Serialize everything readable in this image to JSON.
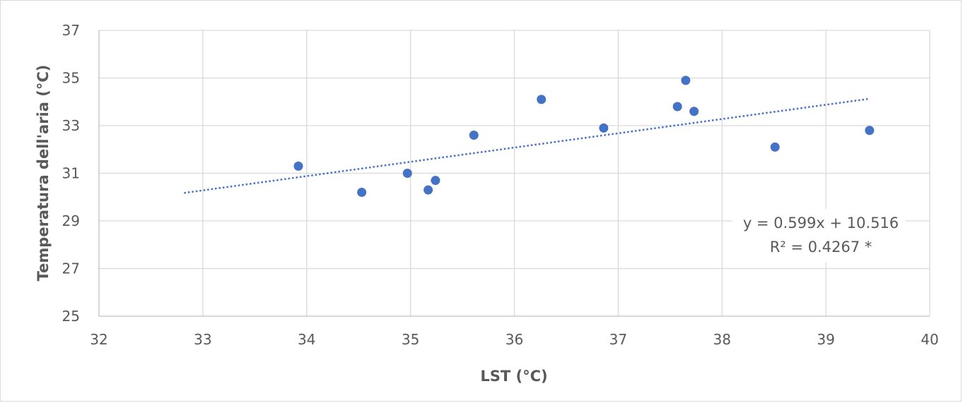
{
  "chart_data": {
    "type": "scatter",
    "xlabel": "LST (°C)",
    "ylabel": "Temperatura dell'aria (°C)",
    "xlim": [
      32,
      40
    ],
    "ylim": [
      25,
      37
    ],
    "x_ticks": [
      32,
      33,
      34,
      35,
      36,
      37,
      38,
      39,
      40
    ],
    "y_ticks": [
      25,
      27,
      29,
      31,
      33,
      35,
      37
    ],
    "grid": true,
    "marker_color": "#4472c4",
    "trendline_color": "#4472c4",
    "points": [
      {
        "x": 33.92,
        "y": 31.3
      },
      {
        "x": 34.53,
        "y": 30.2
      },
      {
        "x": 34.97,
        "y": 31.0
      },
      {
        "x": 35.17,
        "y": 30.3
      },
      {
        "x": 35.24,
        "y": 30.7
      },
      {
        "x": 35.61,
        "y": 32.6
      },
      {
        "x": 36.26,
        "y": 34.1
      },
      {
        "x": 36.86,
        "y": 32.9
      },
      {
        "x": 37.57,
        "y": 33.8
      },
      {
        "x": 37.65,
        "y": 34.9
      },
      {
        "x": 37.73,
        "y": 33.6
      },
      {
        "x": 38.51,
        "y": 32.1
      },
      {
        "x": 39.42,
        "y": 32.8
      }
    ],
    "trendline": {
      "type": "linear",
      "slope": 0.599,
      "intercept": 10.516,
      "x_range": [
        32.82,
        39.42
      ],
      "style": "dotted"
    },
    "annotations": {
      "equation": "y = 0.599x + 10.516",
      "r_squared": "R² = 0.4267 *"
    }
  }
}
